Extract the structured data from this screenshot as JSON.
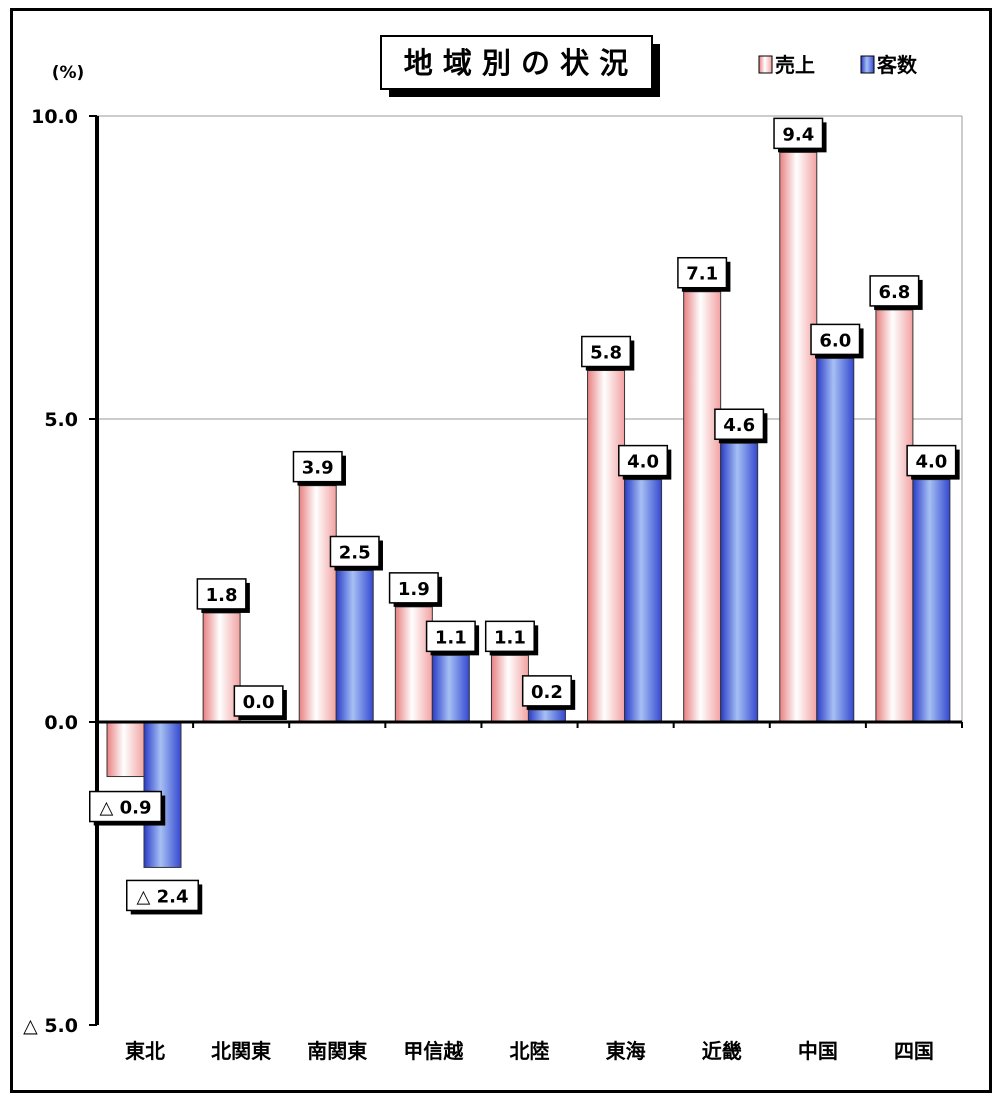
{
  "chart_data": {
    "type": "bar",
    "title": "地 域 別 の 状 況",
    "ylabel": "(%)",
    "ylim": [
      -5.0,
      10.0
    ],
    "yticks": [
      10.0,
      5.0,
      0.0,
      -5.0
    ],
    "ytick_labels": [
      "10.0",
      "5.0",
      "0.0",
      "△ 5.0"
    ],
    "gridlines": true,
    "legend_position": "top-right",
    "categories": [
      "東北",
      "北関東",
      "南関東",
      "甲信越",
      "北陸",
      "東海",
      "近畿",
      "中国",
      "四国"
    ],
    "series": [
      {
        "name": "売上",
        "color": "#f4a0a0",
        "values": [
          -0.9,
          1.8,
          3.9,
          1.9,
          1.1,
          5.8,
          7.1,
          9.4,
          6.8
        ],
        "labels": [
          "△ 0.9",
          "1.8",
          "3.9",
          "1.9",
          "1.1",
          "5.8",
          "7.1",
          "9.4",
          "6.8"
        ]
      },
      {
        "name": "客数",
        "color": "#4a62d8",
        "values": [
          -2.4,
          0.0,
          2.5,
          1.1,
          0.2,
          4.0,
          4.6,
          6.0,
          4.0
        ],
        "labels": [
          "△ 2.4",
          "0.0",
          "2.5",
          "1.1",
          "0.2",
          "4.0",
          "4.6",
          "6.0",
          "4.0"
        ]
      }
    ]
  }
}
